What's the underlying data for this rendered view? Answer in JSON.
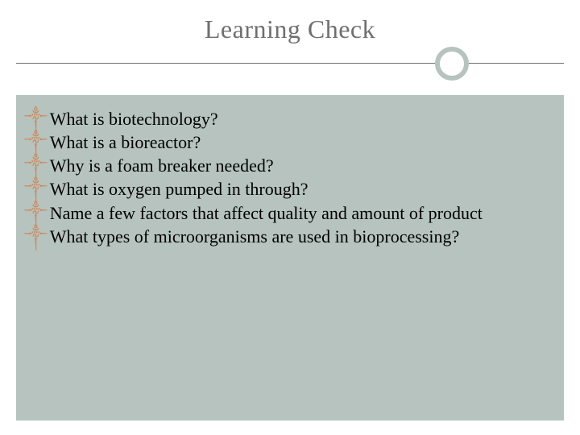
{
  "slide": {
    "title": "Learning Check",
    "title_color": "#6f6f6f",
    "title_fontsize": 32,
    "divider_color": "#6f6f6f",
    "ring_color": "#b6c3bf",
    "content_bg": "#b6c3bf",
    "bullet_glyph": "༒",
    "bullet_color": "#c98a5e",
    "text_color": "#000000",
    "text_fontsize": 22,
    "items": [
      "What is biotechnology?",
      "What is a bioreactor?",
      "Why is a foam breaker needed?",
      "What is oxygen pumped in through?",
      "Name a few factors that affect quality and amount of product",
      "What types of microorganisms are used in bioprocessing?"
    ]
  }
}
